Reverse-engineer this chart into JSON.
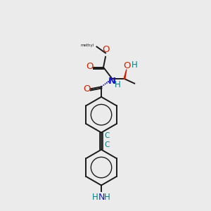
{
  "bg_color": "#ebebeb",
  "bond_color": "#1a1a1a",
  "oxygen_color": "#cc2200",
  "nitrogen_color": "#1414cc",
  "teal_color": "#008080",
  "figsize": [
    3.0,
    3.0
  ],
  "dpi": 100,
  "xlim": [
    0,
    10
  ],
  "ylim": [
    0,
    10
  ],
  "lw": 1.4,
  "fs": 8.5
}
